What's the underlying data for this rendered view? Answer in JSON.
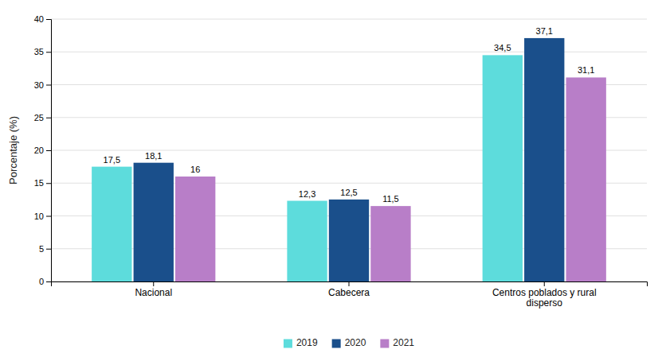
{
  "chart_data": {
    "type": "bar",
    "ylabel": "Porcentaje (%)",
    "categories": [
      "Nacional",
      "Cabecera",
      "Centros poblados y rural\ndisperso"
    ],
    "series": [
      {
        "name": "2019",
        "color": "#5DDCDC",
        "values": [
          17.5,
          12.3,
          34.5
        ],
        "value_labels": [
          "17,5",
          "12,3",
          "34,5"
        ]
      },
      {
        "name": "2020",
        "color": "#1A4F8B",
        "values": [
          18.1,
          12.5,
          37.1
        ],
        "value_labels": [
          "18,1",
          "12,5",
          "37,1"
        ]
      },
      {
        "name": "2021",
        "color": "#B87EC8",
        "values": [
          16.0,
          11.5,
          31.1
        ],
        "value_labels": [
          "16",
          "11,5",
          "31,1"
        ]
      }
    ],
    "ylim": [
      0,
      40
    ],
    "yticks": [
      0,
      5,
      10,
      15,
      20,
      25,
      30,
      35,
      40
    ],
    "grid": true,
    "legend": "bottom",
    "data_labels": true
  }
}
